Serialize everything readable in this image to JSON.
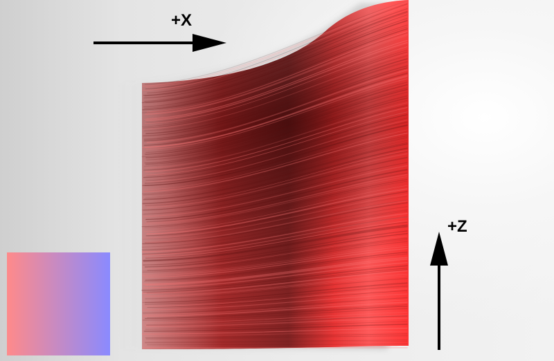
{
  "axes": {
    "x_label": "+X",
    "z_label": "+Z"
  },
  "colors": {
    "background": "#e8e8e8",
    "hair_primary": "#ff3030",
    "hair_shadow": "#5a1515",
    "swatch_start": "#ff8a8a",
    "swatch_end": "#8a8aff",
    "arrow": "#000000"
  }
}
